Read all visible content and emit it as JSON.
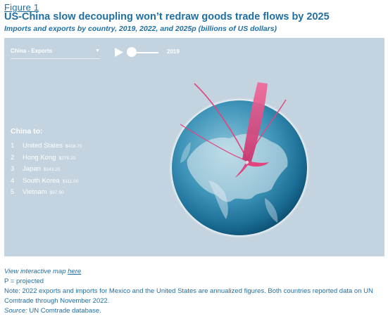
{
  "figure": {
    "label": "Figure 1",
    "title": "US-China slow decoupling won’t redraw goods trade flows by 2025",
    "subtitle": "Imports and exports by country, 2019, 2022, and 2025p (billions of US dollars)"
  },
  "map": {
    "selector_value": "China - Exports",
    "year": "2019",
    "list_heading": "China to:",
    "list": [
      {
        "rank": "1",
        "country": "United States",
        "value": "$418.70"
      },
      {
        "rank": "2",
        "country": "Hong Kong",
        "value": "$279.20"
      },
      {
        "rank": "3",
        "country": "Japan",
        "value": "$143.20"
      },
      {
        "rank": "4",
        "country": "South Korea",
        "value": "$111.00"
      },
      {
        "rank": "5",
        "country": "Vietnam",
        "value": "$97.90"
      }
    ]
  },
  "notes": {
    "interactive_prefix": "View interactive map ",
    "interactive_link": "here",
    "projected": "P = projected",
    "note": "Note: 2022 exports and imports for Mexico and the United States are annualized figures. Both countries reported data on UN Comtrade through November 2022.",
    "source_label": "Source:",
    "source_text": " UN Comtrade database."
  },
  "colors": {
    "accent": "#1f6fa3",
    "panel": "#c3d3df",
    "flow": "#e0457b"
  },
  "icons": [
    "play-icon",
    "chevron-down-icon"
  ]
}
